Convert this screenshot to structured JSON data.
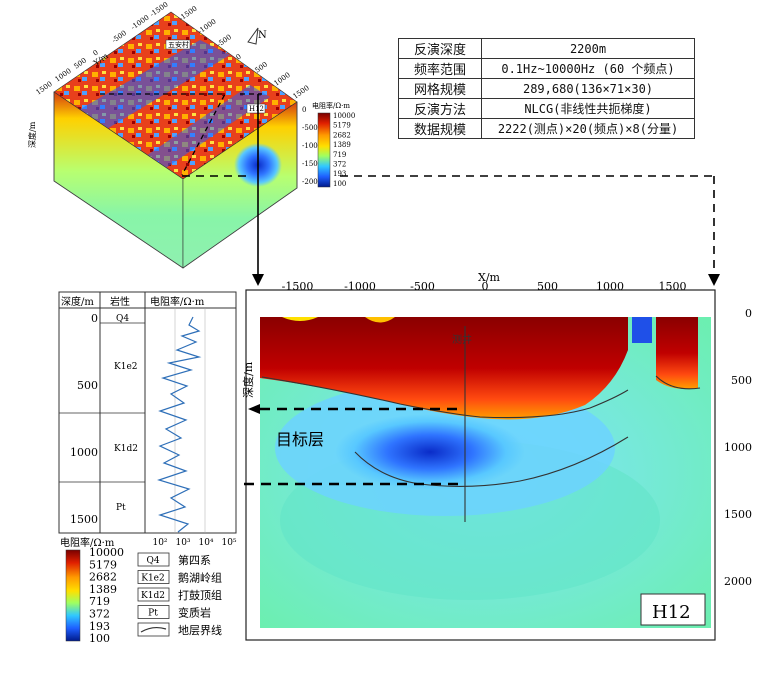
{
  "params": [
    {
      "key": "反演深度",
      "value": "2200m"
    },
    {
      "key": "频率范围",
      "value": "0.1Hz~10000Hz (60 个频点)"
    },
    {
      "key": "网格规模",
      "value": "289,680(136×71×30)"
    },
    {
      "key": "反演方法",
      "value": "NLCG(非线性共扼梯度)"
    },
    {
      "key": "数据规模",
      "value": "2222(测点)×20(频点)×8(分量)"
    }
  ],
  "block3d": {
    "north": "N",
    "y_label": "Y/m",
    "x_label": "X/m",
    "depth_label": "深度/m",
    "legend_title": "电阻率/Ω·m",
    "legend_values": [
      "10000",
      "5179",
      "2682",
      "1389",
      "719",
      "372",
      "193",
      "100"
    ],
    "top_ticks": [
      "-1500",
      "-1000",
      "-500",
      "0",
      "500",
      "1000",
      "1500"
    ],
    "left_ticks": [
      "1500",
      "1000",
      "500",
      "0",
      "-500",
      "-1000",
      "-1500"
    ],
    "depth_ticks": [
      "0",
      "-500",
      "-1000",
      "-1500",
      "-2000"
    ],
    "tag_a": "五安村",
    "tag_b": "H12"
  },
  "section": {
    "x_axis_title": "X/m",
    "x_ticks": [
      "-1500",
      "-1000",
      "-500",
      "0",
      "500",
      "1000",
      "1500"
    ],
    "y_axis_title": "深度/m",
    "y_ticks": [
      "0",
      "500",
      "1000",
      "1500",
      "2000"
    ],
    "well_label": "测井",
    "target_label": "目标层",
    "line_name": "H12"
  },
  "well_log": {
    "col_depth": "深度/m",
    "col_lith": "岩性",
    "col_res": "电阻率/Ω·m",
    "depth_ticks": [
      "0",
      "500",
      "1000",
      "1500"
    ],
    "layers": [
      "Q4",
      "K1e2",
      "K1d2",
      "Pt"
    ],
    "x_ticks": [
      "10²",
      "10³",
      "10⁴",
      "10⁵"
    ]
  },
  "legend": {
    "title": "电阻率/Ω·m",
    "values": [
      "10000",
      "5179",
      "2682",
      "1389",
      "719",
      "372",
      "193",
      "100"
    ],
    "colors": [
      "#7a0000",
      "#e02000",
      "#ff9a00",
      "#ffe000",
      "#a0ff60",
      "#30c8ff",
      "#1e5fff",
      "#001a8a"
    ],
    "items": [
      {
        "sym": "Q4",
        "label": "第四系"
      },
      {
        "sym": "K1e2",
        "label": "鹅湖岭组"
      },
      {
        "sym": "K1d2",
        "label": "打鼓顶组"
      },
      {
        "sym": "Pt",
        "label": "变质岩"
      },
      {
        "sym": "",
        "label": "地层界线"
      }
    ]
  }
}
